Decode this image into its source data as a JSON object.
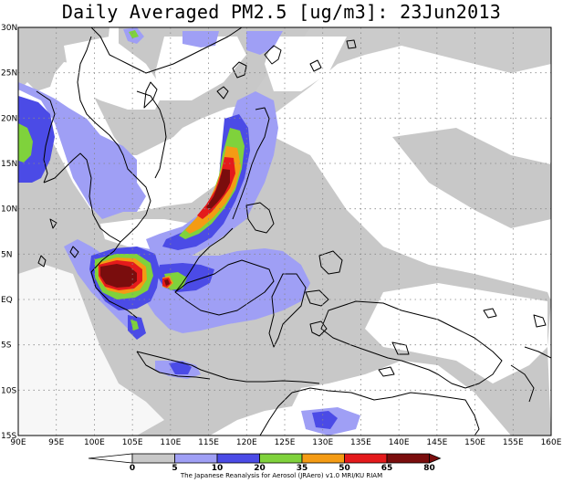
{
  "title": "Daily Averaged PM2.5 [ug/m3]: 23Jun2013",
  "map": {
    "lon_range": [
      90,
      160
    ],
    "lat_range": [
      -15,
      30
    ],
    "grid": true,
    "x_ticks": [
      {
        "value": 90,
        "label": "90E"
      },
      {
        "value": 95,
        "label": "95E"
      },
      {
        "value": 100,
        "label": "100E"
      },
      {
        "value": 105,
        "label": "105E"
      },
      {
        "value": 110,
        "label": "110E"
      },
      {
        "value": 115,
        "label": "115E"
      },
      {
        "value": 120,
        "label": "120E"
      },
      {
        "value": 125,
        "label": "125E"
      },
      {
        "value": 130,
        "label": "130E"
      },
      {
        "value": 135,
        "label": "135E"
      },
      {
        "value": 140,
        "label": "140E"
      },
      {
        "value": 145,
        "label": "145E"
      },
      {
        "value": 150,
        "label": "150E"
      },
      {
        "value": 155,
        "label": "155E"
      },
      {
        "value": 160,
        "label": "160E"
      }
    ],
    "y_ticks": [
      {
        "value": 30,
        "label": "30N"
      },
      {
        "value": 25,
        "label": "25N"
      },
      {
        "value": 20,
        "label": "20N"
      },
      {
        "value": 15,
        "label": "15N"
      },
      {
        "value": 10,
        "label": "10N"
      },
      {
        "value": 5,
        "label": "5N"
      },
      {
        "value": 0,
        "label": "EQ"
      },
      {
        "value": -5,
        "label": "5S"
      },
      {
        "value": -10,
        "label": "10S"
      },
      {
        "value": -15,
        "label": "15S"
      }
    ]
  },
  "legend": {
    "levels": [
      "0",
      "5",
      "10",
      "20",
      "35",
      "50",
      "65",
      "80"
    ],
    "colors": {
      "c5": "#c8c8c8",
      "c10": "#9f9ff5",
      "c20": "#4b4be6",
      "c35": "#7fd23c",
      "c50": "#f49b14",
      "c65": "#e41a1c",
      "c80": "#7a0d0d"
    }
  },
  "credit": "The Japanese Reanalysis for Aerosol (JRAero) v1.0 MRI/KU RIAM"
}
